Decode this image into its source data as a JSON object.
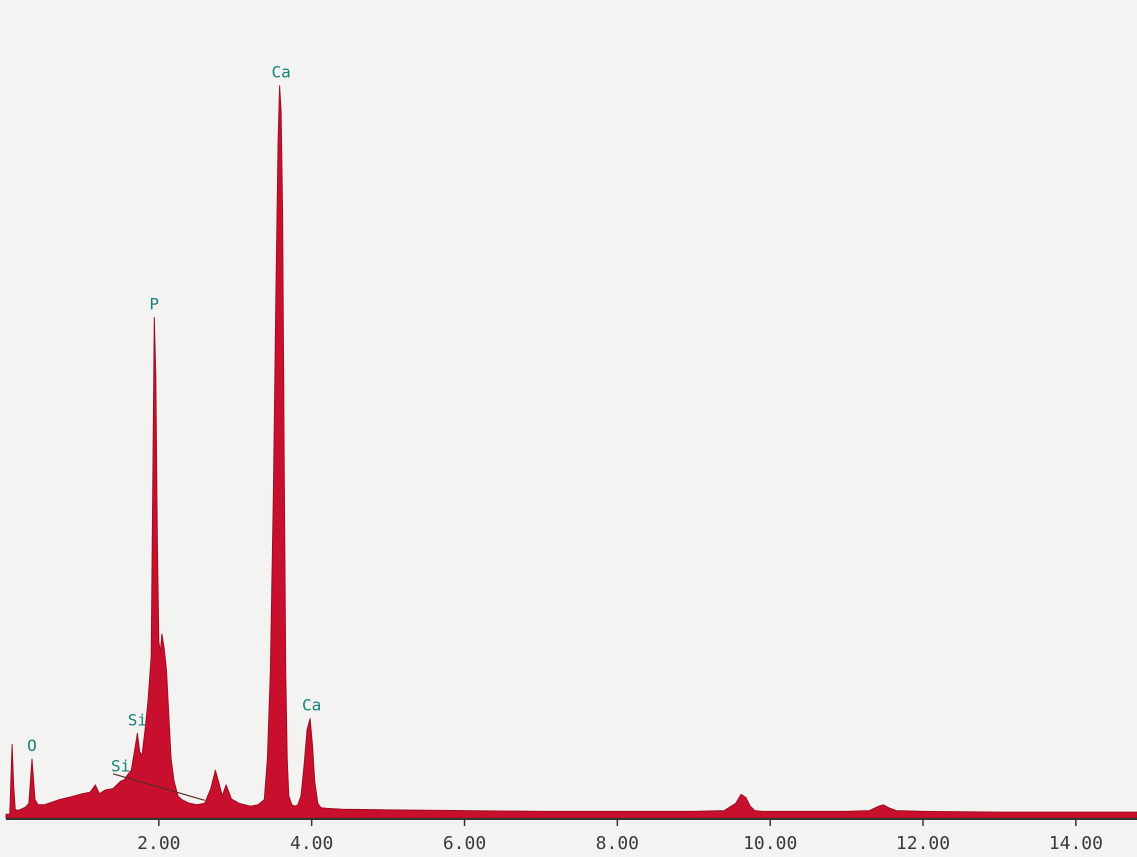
{
  "chart_data": {
    "type": "area",
    "title": "",
    "xlabel": "",
    "ylabel": "",
    "xlim": [
      0,
      14.8
    ],
    "ylim": [
      0,
      100
    ],
    "grid": false,
    "x_ticks": [
      "2.00",
      "4.00",
      "6.00",
      "8.00",
      "10.00",
      "12.00",
      "14.00"
    ],
    "x_tick_values": [
      2,
      4,
      6,
      8,
      10,
      12,
      14
    ],
    "series": [
      {
        "x": [
          0.0,
          0.05,
          0.08,
          0.1,
          0.12,
          0.15,
          0.2,
          0.26,
          0.3,
          0.34,
          0.38,
          0.42,
          0.5,
          0.7,
          0.9,
          1.0,
          1.1,
          1.17,
          1.22,
          1.3,
          1.4,
          1.5,
          1.55,
          1.6,
          1.64,
          1.68,
          1.72,
          1.75,
          1.78,
          1.82,
          1.86,
          1.9,
          1.92,
          1.94,
          1.96,
          1.98,
          2.0,
          2.02,
          2.04,
          2.07,
          2.1,
          2.13,
          2.16,
          2.2,
          2.25,
          2.3,
          2.4,
          2.5,
          2.6,
          2.68,
          2.74,
          2.78,
          2.83,
          2.88,
          2.95,
          3.05,
          3.2,
          3.3,
          3.38,
          3.42,
          3.46,
          3.5,
          3.53,
          3.56,
          3.58,
          3.6,
          3.62,
          3.64,
          3.66,
          3.68,
          3.7,
          3.74,
          3.78,
          3.82,
          3.86,
          3.9,
          3.94,
          3.98,
          4.01,
          4.04,
          4.08,
          4.12,
          4.2,
          4.4,
          5.0,
          6.0,
          7.0,
          8.0,
          9.0,
          9.4,
          9.55,
          9.62,
          9.68,
          9.74,
          9.8,
          9.9,
          10.5,
          11.0,
          11.3,
          11.42,
          11.48,
          11.55,
          11.65,
          12.0,
          13.0,
          14.0,
          14.8
        ],
        "y": [
          0.5,
          0.5,
          10.0,
          4.5,
          1.2,
          1.0,
          1.2,
          1.5,
          2.0,
          8.0,
          2.5,
          1.8,
          1.8,
          2.5,
          3.0,
          3.3,
          3.5,
          4.5,
          3.3,
          3.8,
          4.0,
          5.0,
          5.2,
          6.0,
          6.5,
          9.0,
          11.5,
          9.0,
          8.5,
          12.0,
          16.0,
          22.0,
          44.0,
          68.0,
          60.0,
          38.0,
          24.0,
          22.5,
          25.0,
          23.0,
          20.0,
          14.0,
          8.0,
          5.0,
          3.0,
          2.5,
          2.0,
          1.8,
          2.0,
          4.0,
          6.5,
          5.0,
          3.0,
          4.5,
          2.6,
          2.0,
          1.6,
          1.8,
          2.5,
          8.0,
          20.0,
          45.0,
          70.0,
          92.0,
          99.5,
          96.0,
          82.0,
          48.0,
          20.0,
          8.0,
          3.0,
          1.8,
          1.6,
          1.8,
          3.0,
          7.0,
          12.0,
          13.5,
          10.0,
          5.0,
          2.0,
          1.4,
          1.3,
          1.2,
          1.1,
          1.0,
          0.9,
          0.9,
          0.9,
          1.0,
          2.0,
          3.2,
          2.8,
          1.6,
          1.0,
          0.9,
          0.9,
          0.9,
          1.0,
          1.6,
          1.8,
          1.4,
          1.0,
          0.9,
          0.8,
          0.8,
          0.8
        ]
      }
    ],
    "annotations": [
      {
        "text": "Ca",
        "x": 3.6,
        "y": 99.5
      },
      {
        "text": "P",
        "x": 1.94,
        "y": 68.0
      },
      {
        "text": "Ca",
        "x": 4.0,
        "y": 13.5
      },
      {
        "text": "O",
        "x": 0.34,
        "y": 8.0
      },
      {
        "text": "Si",
        "x": 1.72,
        "y": 11.5
      },
      {
        "text": "Si",
        "x": 1.5,
        "y": 5.2
      }
    ],
    "colors": {
      "fill": "#c8102e",
      "stroke": "#a00c22",
      "label": "#17807a",
      "axis": "#333333",
      "background": "#f3f3f1"
    }
  }
}
